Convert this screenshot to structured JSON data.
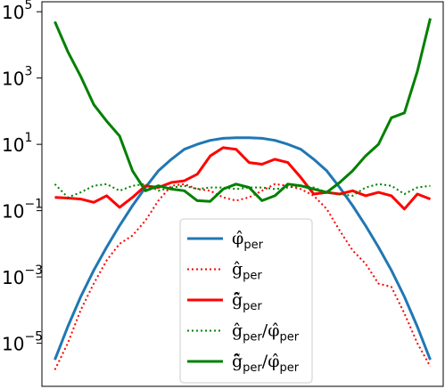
{
  "chart_data": {
    "type": "line",
    "title": "",
    "xlabel": "",
    "ylabel": "",
    "xlim": [
      0,
      31
    ],
    "ylim_log10": [
      -6.3,
      5.3
    ],
    "yscale": "log",
    "grid": false,
    "legend_placement": "lower-center",
    "y_ticks": [
      {
        "base": "10",
        "exp": "5",
        "log": 5
      },
      {
        "base": "10",
        "exp": "3",
        "log": 3
      },
      {
        "base": "10",
        "exp": "1",
        "log": 1
      },
      {
        "base": "10",
        "exp": "−1",
        "log": -1
      },
      {
        "base": "10",
        "exp": "−3",
        "log": -3
      },
      {
        "base": "10",
        "exp": "−5",
        "log": -5
      }
    ],
    "series": [
      {
        "name": "φ̂_per",
        "legend": {
          "main": "φ̂",
          "sub": "per"
        },
        "color": "#1f77b4",
        "style": "solid",
        "width": 3,
        "x": [
          1,
          2,
          3,
          4,
          5,
          6,
          7,
          8,
          9,
          10,
          11,
          12,
          13,
          14,
          15,
          16,
          17,
          18,
          19,
          20,
          21,
          22,
          23,
          24,
          25,
          26,
          27,
          28,
          29,
          30
        ],
        "log10_y": [
          -5.5,
          -4.5,
          -3.6,
          -2.8,
          -2.1,
          -1.45,
          -0.85,
          -0.3,
          0.2,
          0.55,
          0.85,
          1.0,
          1.12,
          1.18,
          1.2,
          1.2,
          1.18,
          1.12,
          1.0,
          0.85,
          0.55,
          0.2,
          -0.3,
          -0.85,
          -1.45,
          -2.1,
          -2.8,
          -3.6,
          -4.5,
          -5.5
        ]
      },
      {
        "name": "ĝ_per",
        "legend": {
          "main": "ĝ",
          "sub": "per"
        },
        "color": "#ff0000",
        "style": "dotted",
        "width": 2,
        "x": [
          1,
          2,
          3,
          4,
          5,
          6,
          7,
          8,
          9,
          10,
          11,
          12,
          13,
          14,
          15,
          16,
          17,
          18,
          19,
          20,
          21,
          22,
          23,
          24,
          25,
          26,
          27,
          28,
          29,
          30
        ],
        "log10_y": [
          -5.8,
          -5.0,
          -4.0,
          -3.2,
          -2.5,
          -2.0,
          -1.75,
          -1.3,
          -0.7,
          -0.25,
          -0.2,
          -0.35,
          -0.4,
          -0.6,
          -0.7,
          -0.6,
          -0.4,
          -0.2,
          -0.25,
          -0.35,
          -0.55,
          -0.95,
          -1.6,
          -2.2,
          -2.6,
          -3.2,
          -3.3,
          -4.1,
          -5.0,
          -5.7
        ]
      },
      {
        "name": "g̃̂_per",
        "legend": {
          "main": "g̃̂",
          "sub": "per"
        },
        "color": "#ff0000",
        "style": "solid",
        "width": 3,
        "x": [
          1,
          2,
          3,
          4,
          5,
          6,
          7,
          8,
          9,
          10,
          11,
          12,
          13,
          14,
          15,
          16,
          17,
          18,
          19,
          20,
          21,
          22,
          23,
          24,
          25,
          26,
          27,
          28,
          29,
          30
        ],
        "log10_y": [
          -0.6,
          -0.62,
          -0.65,
          -0.75,
          -0.55,
          -0.9,
          -0.6,
          -0.25,
          -0.3,
          -0.15,
          -0.1,
          0.1,
          0.65,
          0.9,
          0.85,
          0.45,
          0.4,
          0.55,
          0.45,
          0.0,
          -0.5,
          -0.45,
          -0.5,
          -0.4,
          -0.55,
          -0.45,
          -0.55,
          -0.95,
          -0.5,
          -0.65
        ]
      },
      {
        "name": "ĝ_per/φ̂_per",
        "legend": {
          "main": "ĝ",
          "sub": "per",
          "main2": "φ̂",
          "sub2": "per",
          "sep": "/"
        },
        "color": "#008000",
        "style": "dotted",
        "width": 2,
        "x": [
          1,
          2,
          3,
          4,
          5,
          6,
          7,
          8,
          9,
          10,
          11,
          12,
          13,
          14,
          15,
          16,
          17,
          18,
          19,
          20,
          21,
          22,
          23,
          24,
          25,
          26,
          27,
          28,
          29,
          30
        ],
        "log10_y": [
          -0.2,
          -0.6,
          -0.45,
          -0.25,
          -0.2,
          -0.4,
          -0.25,
          -0.2,
          -0.4,
          -0.3,
          -0.25,
          -0.35,
          -0.3,
          -0.3,
          -0.35,
          -0.3,
          -0.3,
          -0.35,
          -0.3,
          -0.25,
          -0.3,
          -0.45,
          -0.5,
          -0.55,
          -0.3,
          -0.2,
          -0.25,
          -0.5,
          -0.3,
          -0.25
        ]
      },
      {
        "name": "g̃̂_per/φ̂_per",
        "legend": {
          "main": "g̃̂",
          "sub": "per",
          "main2": "φ̂",
          "sub2": "per",
          "sep": "/"
        },
        "color": "#008000",
        "style": "solid",
        "width": 3,
        "x": [
          1,
          2,
          3,
          4,
          5,
          6,
          7,
          8,
          9,
          10,
          11,
          12,
          13,
          14,
          15,
          16,
          17,
          18,
          19,
          20,
          21,
          22,
          23,
          24,
          25,
          26,
          27,
          28,
          29,
          30
        ],
        "log10_y": [
          4.7,
          3.8,
          3.05,
          2.2,
          1.7,
          1.25,
          0.2,
          -0.4,
          -0.25,
          -0.35,
          -0.4,
          -0.7,
          -0.72,
          -0.35,
          -0.2,
          -0.3,
          -0.7,
          -0.55,
          -0.2,
          -0.25,
          -0.35,
          -0.45,
          -0.15,
          0.2,
          0.65,
          1.0,
          1.8,
          1.95,
          3.2,
          4.8
        ]
      }
    ]
  }
}
